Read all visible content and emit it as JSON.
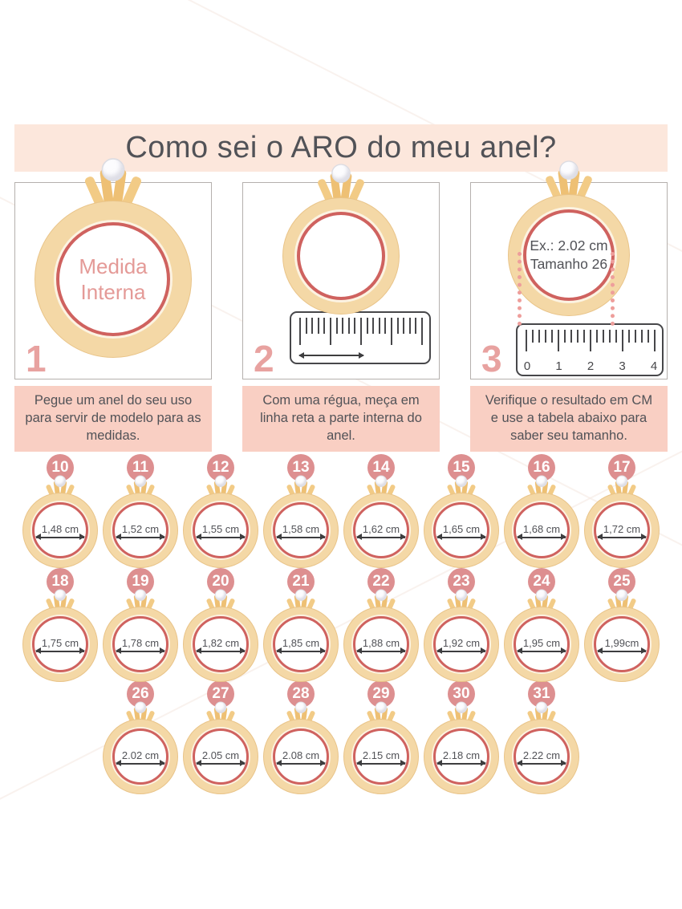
{
  "title": "Como sei o ARO do meu anel?",
  "steps": [
    {
      "number": "1",
      "ring_text": [
        "Medida",
        "Interna"
      ],
      "caption": "Pegue um anel do seu uso para servir de modelo para as medidas."
    },
    {
      "number": "2",
      "caption": "Com uma régua, meça em linha reta a parte interna do anel."
    },
    {
      "number": "3",
      "ring_text": [
        "Ex.: 2.02 cm",
        "Tamanho 26"
      ],
      "ruler_numbers": [
        "0",
        "1",
        "2",
        "3",
        "4"
      ],
      "caption": "Verifique o resultado em CM e use a tabela abaixo para saber seu tamanho."
    }
  ],
  "sizes": {
    "rows": [
      [
        {
          "size": "10",
          "diameter": "1,48 cm"
        },
        {
          "size": "11",
          "diameter": "1,52 cm"
        },
        {
          "size": "12",
          "diameter": "1,55 cm"
        },
        {
          "size": "13",
          "diameter": "1,58 cm"
        },
        {
          "size": "14",
          "diameter": "1,62 cm"
        },
        {
          "size": "15",
          "diameter": "1,65 cm"
        },
        {
          "size": "16",
          "diameter": "1,68 cm"
        },
        {
          "size": "17",
          "diameter": "1,72 cm"
        }
      ],
      [
        {
          "size": "18",
          "diameter": "1,75 cm"
        },
        {
          "size": "19",
          "diameter": "1,78 cm"
        },
        {
          "size": "20",
          "diameter": "1,82 cm"
        },
        {
          "size": "21",
          "diameter": "1,85 cm"
        },
        {
          "size": "22",
          "diameter": "1,88 cm"
        },
        {
          "size": "23",
          "diameter": "1,92 cm"
        },
        {
          "size": "24",
          "diameter": "1,95 cm"
        },
        {
          "size": "25",
          "diameter": "1,99cm"
        }
      ],
      [
        {
          "size": "26",
          "diameter": "2.02 cm"
        },
        {
          "size": "27",
          "diameter": "2.05 cm"
        },
        {
          "size": "28",
          "diameter": "2.08 cm"
        },
        {
          "size": "29",
          "diameter": "2.15 cm"
        },
        {
          "size": "30",
          "diameter": "2.18 cm"
        },
        {
          "size": "31",
          "diameter": "2.22 cm"
        }
      ]
    ]
  },
  "colors": {
    "banner_bg": "#fce7dc",
    "caption_bg": "#f9cfc3",
    "badge_bg": "#dd8f90",
    "step_number": "#e8a2a0",
    "ring_gold": "#f4d8a6",
    "ring_gold_edge": "#e9c489",
    "ring_rose": "#cf625f",
    "ring_label_pink": "#e49a97",
    "text_dark": "#515257",
    "ruler_ink": "#47474a",
    "dot_pink": "#ee9e9b"
  }
}
